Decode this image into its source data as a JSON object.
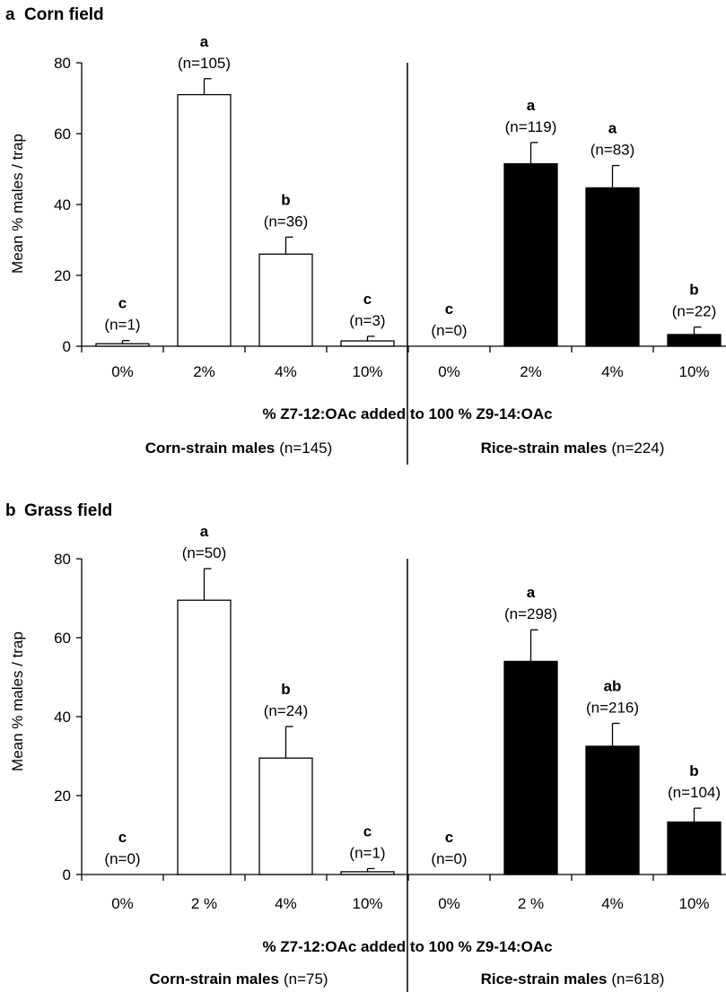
{
  "chart_data": [
    {
      "type": "bar",
      "panel_letter": "a",
      "title": "Corn field",
      "ylabel": "Mean % males / trap",
      "xlabel": "% Z7-12:OAc added to 100 % Z9-14:OAc",
      "ylim": [
        0,
        80
      ],
      "yticks": [
        "0",
        "20",
        "40",
        "60",
        "80"
      ],
      "categories": [
        "0%",
        "2%",
        "4%",
        "10%",
        "0%",
        "2%",
        "4%",
        "10%"
      ],
      "values": [
        0.7,
        71,
        26,
        1.5,
        0,
        51.5,
        44.7,
        3.3
      ],
      "errors": [
        0.9,
        4.5,
        4.8,
        1.3,
        0,
        6,
        6.3,
        2.1
      ],
      "fills": [
        "#ffffff",
        "#ffffff",
        "#ffffff",
        "#ffffff",
        "#000000",
        "#000000",
        "#000000",
        "#000000"
      ],
      "sig_letters": [
        "c",
        "a",
        "b",
        "c",
        "c",
        "a",
        "a",
        "b"
      ],
      "n_labels": [
        "(n=1)",
        "(n=105)",
        "(n=36)",
        "(n=3)",
        "(n=0)",
        "(n=119)",
        "(n=83)",
        "(n=22)"
      ],
      "groups": [
        {
          "name": "Corn-strain males",
          "n": "(n=145)"
        },
        {
          "name": "Rice-strain males",
          "n": "(n=224)"
        }
      ]
    },
    {
      "type": "bar",
      "panel_letter": "b",
      "title": "Grass field",
      "ylabel": "Mean % males / trap",
      "xlabel": "% Z7-12:OAc added to 100 % Z9-14:OAc",
      "ylim": [
        0,
        80
      ],
      "yticks": [
        "0",
        "20",
        "40",
        "60",
        "80"
      ],
      "categories": [
        "0%",
        "2 %",
        "4%",
        "10%",
        "0%",
        "2 %",
        "4%",
        "10%"
      ],
      "values": [
        0,
        69.5,
        29.5,
        0.7,
        0,
        54,
        32.5,
        13.3
      ],
      "errors": [
        0,
        8,
        8,
        0.8,
        0,
        8,
        5.8,
        3.5
      ],
      "fills": [
        "#ffffff",
        "#ffffff",
        "#ffffff",
        "#ffffff",
        "#000000",
        "#000000",
        "#000000",
        "#000000"
      ],
      "sig_letters": [
        "c",
        "a",
        "b",
        "c",
        "c",
        "a",
        "ab",
        "b"
      ],
      "n_labels": [
        "(n=0)",
        "(n=50)",
        "(n=24)",
        "(n=1)",
        "(n=0)",
        "(n=298)",
        "(n=216)",
        "(n=104)"
      ],
      "groups": [
        {
          "name": "Corn-strain males",
          "n": "(n=75)"
        },
        {
          "name": "Rice-strain males",
          "n": "(n=618)"
        }
      ]
    }
  ]
}
